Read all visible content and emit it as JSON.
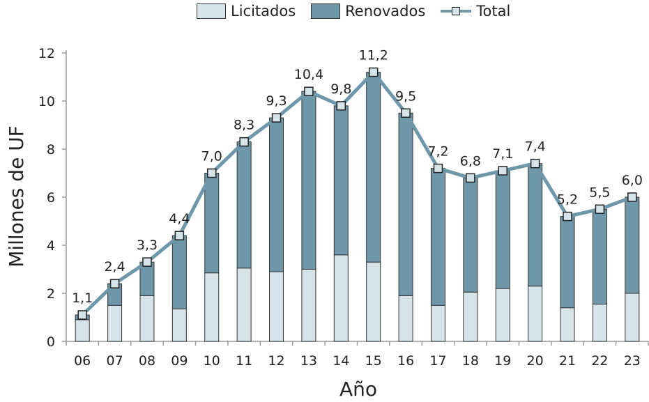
{
  "chart_data": {
    "type": "bar",
    "stacked": true,
    "categories": [
      "06",
      "07",
      "08",
      "09",
      "10",
      "11",
      "12",
      "13",
      "14",
      "15",
      "16",
      "17",
      "18",
      "19",
      "20",
      "21",
      "22",
      "23"
    ],
    "series": [
      {
        "name": "Licitados",
        "values": [
          0.9,
          1.5,
          1.9,
          1.35,
          2.85,
          3.05,
          2.9,
          3.0,
          3.6,
          3.3,
          1.9,
          1.5,
          2.05,
          2.2,
          2.3,
          1.4,
          1.55,
          2.0
        ],
        "color": "#d6e3e8"
      },
      {
        "name": "Renovados",
        "values": [
          0.2,
          0.9,
          1.4,
          3.05,
          4.15,
          5.25,
          6.4,
          7.4,
          6.2,
          7.9,
          7.6,
          5.7,
          4.75,
          4.9,
          5.1,
          3.8,
          3.95,
          4.0
        ],
        "color": "#6e97a9"
      }
    ],
    "line": {
      "name": "Total",
      "values": [
        1.1,
        2.4,
        3.3,
        4.4,
        7.0,
        8.3,
        9.3,
        10.4,
        9.8,
        11.2,
        9.5,
        7.2,
        6.8,
        7.1,
        7.4,
        5.2,
        5.5,
        6.0
      ],
      "color": "#6e97a9"
    },
    "data_labels": [
      "1,1",
      "2,4",
      "3,3",
      "4,4",
      "7,0",
      "8,3",
      "9,3",
      "10,4",
      "9,8",
      "11,2",
      "9,5",
      "7,2",
      "6,8",
      "7,1",
      "7,4",
      "5,2",
      "5,5",
      "6,0"
    ],
    "xlabel": "Año",
    "ylabel": "Millones de UF",
    "ylim": [
      0,
      12
    ],
    "yticks": [
      0,
      2,
      4,
      6,
      8,
      10,
      12
    ],
    "grid": false,
    "legend_position": "top"
  },
  "legend": {
    "licitados": "Licitados",
    "renovados": "Renovados",
    "total": "Total"
  }
}
